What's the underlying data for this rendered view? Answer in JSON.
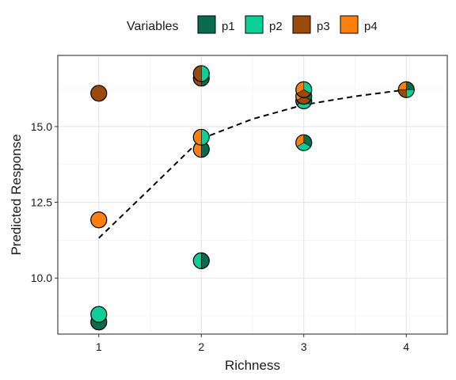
{
  "chart_data": {
    "type": "scatter",
    "xlabel": "Richness",
    "ylabel": "Predicted Response",
    "xlim": [
      0.6,
      4.4
    ],
    "ylim": [
      8.15,
      17.35
    ],
    "x_ticks": [
      1,
      2,
      3,
      4
    ],
    "y_ticks": [
      10.0,
      12.5,
      15.0
    ],
    "y_tick_labels": [
      "10.0",
      "12.5",
      "15.0"
    ],
    "grid": true,
    "legend": {
      "title": "Variables",
      "position": "top",
      "entries": [
        {
          "name": "p1",
          "color": "#0b6b4f"
        },
        {
          "name": "p2",
          "color": "#0ccf98"
        },
        {
          "name": "p3",
          "color": "#9b4a0c"
        },
        {
          "name": "p4",
          "color": "#ff7f0e"
        }
      ]
    },
    "points": [
      {
        "x": 1,
        "y": 8.55,
        "shares": {
          "p1": 1.0
        }
      },
      {
        "x": 1,
        "y": 8.8,
        "shares": {
          "p2": 1.0
        }
      },
      {
        "x": 1,
        "y": 16.1,
        "shares": {
          "p3": 1.0
        }
      },
      {
        "x": 1,
        "y": 11.92,
        "shares": {
          "p4": 1.0
        }
      },
      {
        "x": 2,
        "y": 10.57,
        "shares": {
          "p1": 0.5,
          "p2": 0.5
        }
      },
      {
        "x": 2,
        "y": 16.6,
        "shares": {
          "p1": 0.5,
          "p3": 0.5
        }
      },
      {
        "x": 2,
        "y": 16.75,
        "shares": {
          "p2": 0.5,
          "p3": 0.5
        }
      },
      {
        "x": 2,
        "y": 14.25,
        "shares": {
          "p1": 0.5,
          "p4": 0.5
        }
      },
      {
        "x": 2,
        "y": 14.65,
        "shares": {
          "p2": 0.5,
          "p4": 0.5
        }
      },
      {
        "x": 3,
        "y": 14.47,
        "shares": {
          "p1": 0.333,
          "p2": 0.333,
          "p4": 0.334
        }
      },
      {
        "x": 3,
        "y": 15.85,
        "shares": {
          "p1": 0.333,
          "p2": 0.333,
          "p3": 0.334
        }
      },
      {
        "x": 3,
        "y": 16.0,
        "shares": {
          "p1": 0.333,
          "p3": 0.333,
          "p4": 0.334
        }
      },
      {
        "x": 3,
        "y": 16.22,
        "shares": {
          "p2": 0.333,
          "p3": 0.333,
          "p4": 0.334
        }
      },
      {
        "x": 4,
        "y": 16.22,
        "shares": {
          "p1": 0.25,
          "p2": 0.25,
          "p3": 0.25,
          "p4": 0.25
        }
      }
    ],
    "trend_line": {
      "style": "dashed",
      "x": [
        1,
        1.5,
        2,
        2.5,
        3,
        3.5,
        4
      ],
      "y": [
        11.32,
        12.95,
        14.6,
        15.25,
        15.72,
        16.0,
        16.22
      ]
    }
  }
}
